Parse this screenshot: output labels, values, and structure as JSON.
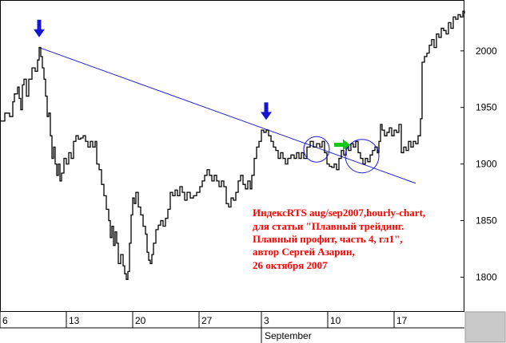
{
  "chart_data": {
    "type": "line",
    "annotation_lines": [
      "ИндексRTS aug/sep2007,hourly-chart,",
      "для статьи \"Плавный трейдинг.",
      "Плавный профит, часть 4, гл1\",",
      "автор Сергей Азарин,",
      "26 октября 2007"
    ],
    "x_tick_labels": [
      "6",
      "13",
      "20",
      "27",
      "3",
      "10",
      "17"
    ],
    "x_month_label": "September",
    "y_ticks": [
      1800,
      1850,
      1900,
      1950,
      2000
    ],
    "ylim": [
      1770,
      2045
    ],
    "series_points": [
      [
        0,
        1938
      ],
      [
        6,
        1945
      ],
      [
        12,
        1942
      ],
      [
        16,
        1955
      ],
      [
        18,
        1962
      ],
      [
        22,
        1968
      ],
      [
        24,
        1958
      ],
      [
        26,
        1948
      ],
      [
        28,
        1970
      ],
      [
        30,
        1975
      ],
      [
        33,
        1960
      ],
      [
        36,
        1975
      ],
      [
        40,
        1985
      ],
      [
        44,
        1982
      ],
      [
        47,
        1992
      ],
      [
        49,
        2003
      ],
      [
        51,
        1995
      ],
      [
        53,
        1985
      ],
      [
        55,
        1975
      ],
      [
        57,
        1960
      ],
      [
        59,
        1942
      ],
      [
        61,
        1945
      ],
      [
        63,
        1925
      ],
      [
        65,
        1905
      ],
      [
        67,
        1915
      ],
      [
        69,
        1900
      ],
      [
        71,
        1890
      ],
      [
        73,
        1900
      ],
      [
        75,
        1885
      ],
      [
        77,
        1892
      ],
      [
        80,
        1905
      ],
      [
        83,
        1900
      ],
      [
        86,
        1910
      ],
      [
        89,
        1905
      ],
      [
        92,
        1920
      ],
      [
        95,
        1925
      ],
      [
        98,
        1922
      ],
      [
        101,
        1923
      ],
      [
        104,
        1925
      ],
      [
        107,
        1920
      ],
      [
        110,
        1915
      ],
      [
        113,
        1920
      ],
      [
        116,
        1915
      ],
      [
        119,
        1920
      ],
      [
        121,
        1900
      ],
      [
        124,
        1895
      ],
      [
        127,
        1882
      ],
      [
        130,
        1872
      ],
      [
        133,
        1860
      ],
      [
        136,
        1850
      ],
      [
        138,
        1835
      ],
      [
        140,
        1845
      ],
      [
        142,
        1828
      ],
      [
        144,
        1840
      ],
      [
        146,
        1830
      ],
      [
        148,
        1812
      ],
      [
        151,
        1820
      ],
      [
        154,
        1810
      ],
      [
        156,
        1803
      ],
      [
        158,
        1798
      ],
      [
        160,
        1805
      ],
      [
        162,
        1830
      ],
      [
        164,
        1855
      ],
      [
        166,
        1870
      ],
      [
        168,
        1865
      ],
      [
        170,
        1875
      ],
      [
        173,
        1862
      ],
      [
        176,
        1855
      ],
      [
        179,
        1845
      ],
      [
        182,
        1838
      ],
      [
        184,
        1822
      ],
      [
        186,
        1815
      ],
      [
        188,
        1812
      ],
      [
        190,
        1820
      ],
      [
        192,
        1830
      ],
      [
        195,
        1842
      ],
      [
        198,
        1846
      ],
      [
        201,
        1850
      ],
      [
        204,
        1845
      ],
      [
        207,
        1852
      ],
      [
        210,
        1860
      ],
      [
        213,
        1875
      ],
      [
        216,
        1872
      ],
      [
        219,
        1877
      ],
      [
        222,
        1872
      ],
      [
        225,
        1880
      ],
      [
        228,
        1875
      ],
      [
        231,
        1868
      ],
      [
        234,
        1875
      ],
      [
        238,
        1870
      ],
      [
        242,
        1872
      ],
      [
        246,
        1875
      ],
      [
        250,
        1880
      ],
      [
        253,
        1885
      ],
      [
        256,
        1890
      ],
      [
        259,
        1895
      ],
      [
        262,
        1890
      ],
      [
        265,
        1885
      ],
      [
        268,
        1890
      ],
      [
        271,
        1885
      ],
      [
        274,
        1880
      ],
      [
        277,
        1885
      ],
      [
        280,
        1880
      ],
      [
        283,
        1865
      ],
      [
        286,
        1862
      ],
      [
        289,
        1870
      ],
      [
        292,
        1868
      ],
      [
        295,
        1875
      ],
      [
        298,
        1885
      ],
      [
        301,
        1890
      ],
      [
        304,
        1882
      ],
      [
        307,
        1878
      ],
      [
        310,
        1885
      ],
      [
        313,
        1878
      ],
      [
        315,
        1890
      ],
      [
        318,
        1905
      ],
      [
        321,
        1915
      ],
      [
        324,
        1920
      ],
      [
        327,
        1930
      ],
      [
        330,
        1928
      ],
      [
        333,
        1930
      ],
      [
        336,
        1925
      ],
      [
        339,
        1920
      ],
      [
        342,
        1915
      ],
      [
        345,
        1912
      ],
      [
        348,
        1905
      ],
      [
        351,
        1910
      ],
      [
        354,
        1905
      ],
      [
        357,
        1900
      ],
      [
        360,
        1905
      ],
      [
        364,
        1908
      ],
      [
        368,
        1905
      ],
      [
        371,
        1910
      ],
      [
        374,
        1905
      ],
      [
        377,
        1910
      ],
      [
        380,
        1905
      ],
      [
        384,
        1915
      ],
      [
        388,
        1920
      ],
      [
        392,
        1915
      ],
      [
        396,
        1918
      ],
      [
        400,
        1915
      ],
      [
        403,
        1920
      ],
      [
        406,
        1910
      ],
      [
        409,
        1900
      ],
      [
        412,
        1898
      ],
      [
        415,
        1897
      ],
      [
        418,
        1900
      ],
      [
        421,
        1895
      ],
      [
        424,
        1905
      ],
      [
        427,
        1912
      ],
      [
        430,
        1908
      ],
      [
        433,
        1915
      ],
      [
        436,
        1912
      ],
      [
        439,
        1918
      ],
      [
        442,
        1915
      ],
      [
        445,
        1920
      ],
      [
        448,
        1910
      ],
      [
        451,
        1905
      ],
      [
        454,
        1900
      ],
      [
        457,
        1905
      ],
      [
        460,
        1902
      ],
      [
        463,
        1908
      ],
      [
        466,
        1912
      ],
      [
        469,
        1915
      ],
      [
        472,
        1910
      ],
      [
        474,
        1920
      ],
      [
        476,
        1935
      ],
      [
        478,
        1930
      ],
      [
        481,
        1925
      ],
      [
        484,
        1928
      ],
      [
        487,
        1932
      ],
      [
        490,
        1925
      ],
      [
        493,
        1930
      ],
      [
        496,
        1928
      ],
      [
        499,
        1935
      ],
      [
        502,
        1910
      ],
      [
        505,
        1915
      ],
      [
        508,
        1912
      ],
      [
        511,
        1920
      ],
      [
        514,
        1915
      ],
      [
        517,
        1920
      ],
      [
        520,
        1918
      ],
      [
        523,
        1925
      ],
      [
        526,
        1940
      ],
      [
        528,
        1990
      ],
      [
        531,
        1995
      ],
      [
        534,
        1998
      ],
      [
        537,
        2005
      ],
      [
        540,
        2010
      ],
      [
        543,
        2003
      ],
      [
        546,
        2015
      ],
      [
        549,
        2012
      ],
      [
        552,
        2020
      ],
      [
        555,
        2018
      ],
      [
        558,
        2015
      ],
      [
        561,
        2025
      ],
      [
        564,
        2020
      ],
      [
        567,
        2030
      ],
      [
        570,
        2028
      ],
      [
        573,
        2032
      ],
      [
        576,
        2030
      ],
      [
        579,
        2035
      ],
      [
        581,
        2033
      ]
    ],
    "trendline": [
      [
        49,
        2003
      ],
      [
        520,
        1883
      ]
    ],
    "arrows": [
      {
        "color": "#1515d8",
        "direction": "down",
        "at": [
          49,
          2012
        ]
      },
      {
        "color": "#1515d8",
        "direction": "down",
        "at": [
          333,
          1939
        ]
      },
      {
        "color": "#16c816",
        "direction": "right",
        "at": [
          438,
          1917
        ]
      }
    ],
    "circles": [
      {
        "center": [
          396,
          1913
        ],
        "r": 16
      },
      {
        "center": [
          453,
          1907
        ],
        "r": 21
      }
    ]
  }
}
